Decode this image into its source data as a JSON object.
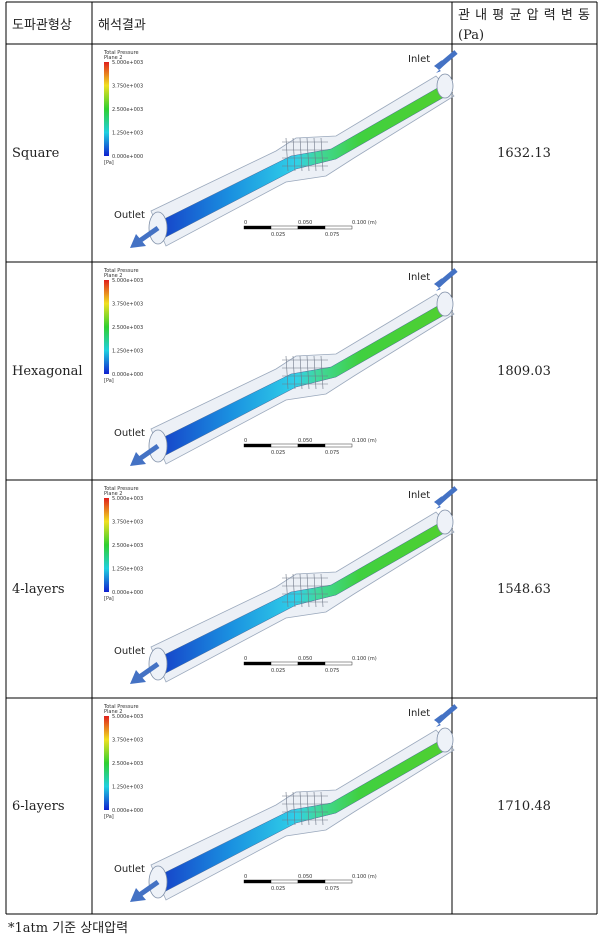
{
  "header": {
    "columns": [
      "도파관형상",
      "해석결과",
      [
        "관내평균압력변동",
        "(Pa)"
      ]
    ]
  },
  "table": {
    "rows": [
      {
        "shape": "Square",
        "value": "1632.13",
        "image": {
          "legend_title": "Total Pressure",
          "legend_subtitle": "Plane 2",
          "legend_ticks": [
            "5.000e+003",
            "3.750e+003",
            "2.500e+003",
            "1.250e+003",
            "0.000e+000"
          ],
          "unit": "[Pa]",
          "inlet": "Inlet",
          "outlet": "Outlet",
          "scale_top": [
            "0",
            "0.050",
            "0.100 (m)"
          ],
          "scale_bottom": [
            "0.025",
            "0.075"
          ]
        }
      },
      {
        "shape": "Hexagonal",
        "value": "1809.03",
        "image": {
          "legend_title": "Total Pressure",
          "legend_subtitle": "Plane 2",
          "legend_ticks": [
            "5.000e+003",
            "3.750e+003",
            "2.500e+003",
            "1.250e+003",
            "0.000e+000"
          ],
          "unit": "[Pa]",
          "inlet": "Inlet",
          "outlet": "Outlet",
          "scale_top": [
            "0",
            "0.050",
            "0.100 (m)"
          ],
          "scale_bottom": [
            "0.025",
            "0.075"
          ]
        }
      },
      {
        "shape": "4-layers",
        "value": "1548.63",
        "image": {
          "legend_title": "Total Pressure",
          "legend_subtitle": "Plane 2",
          "legend_ticks": [
            "5.000e+003",
            "3.750e+003",
            "2.500e+003",
            "1.250e+003",
            "0.000e+000"
          ],
          "unit": "[Pa]",
          "inlet": "Inlet",
          "outlet": "Outlet",
          "scale_top": [
            "0",
            "0.050",
            "0.100 (m)"
          ],
          "scale_bottom": [
            "0.025",
            "0.075"
          ]
        }
      },
      {
        "shape": "6-layers",
        "value": "1710.48",
        "image": {
          "legend_title": "Total Pressure",
          "legend_subtitle": "Plane 2",
          "legend_ticks": [
            "5.000e+003",
            "3.750e+003",
            "2.500e+003",
            "1.250e+003",
            "0.000e+000"
          ],
          "unit": "[Pa]",
          "inlet": "Inlet",
          "outlet": "Outlet",
          "scale_top": [
            "0",
            "0.050",
            "0.100 (m)"
          ],
          "scale_bottom": [
            "0.025",
            "0.075"
          ]
        }
      }
    ]
  },
  "footnote": "*1atm 기준 상대압력"
}
